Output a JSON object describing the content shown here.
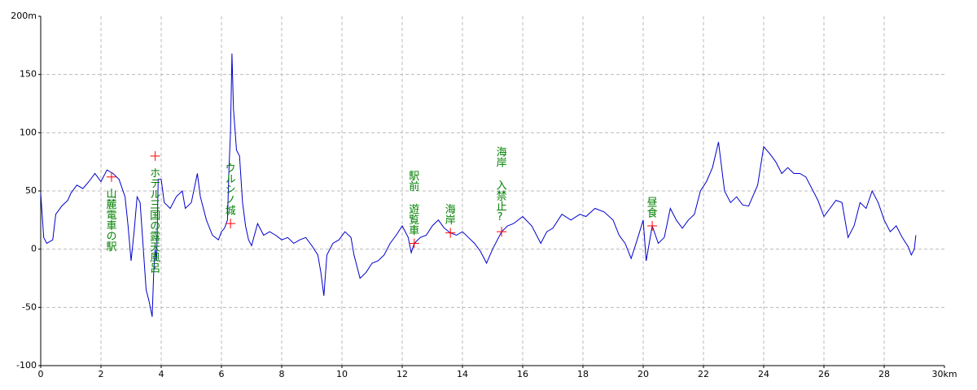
{
  "chart_data": {
    "type": "line",
    "x": [
      0,
      0.1,
      0.2,
      0.4,
      0.5,
      0.7,
      0.9,
      1.0,
      1.2,
      1.4,
      1.6,
      1.8,
      2.0,
      2.2,
      2.4,
      2.6,
      2.8,
      2.9,
      3.0,
      3.1,
      3.2,
      3.3,
      3.5,
      3.6,
      3.7,
      3.75,
      3.8,
      3.85,
      3.9,
      4.0,
      4.1,
      4.3,
      4.5,
      4.7,
      4.8,
      5.0,
      5.2,
      5.3,
      5.5,
      5.7,
      5.9,
      6.0,
      6.1,
      6.2,
      6.25,
      6.3,
      6.35,
      6.4,
      6.5,
      6.6,
      6.7,
      6.8,
      6.9,
      7.0,
      7.2,
      7.4,
      7.6,
      7.8,
      8.0,
      8.2,
      8.4,
      8.6,
      8.8,
      9.0,
      9.2,
      9.3,
      9.4,
      9.5,
      9.7,
      9.9,
      10.1,
      10.3,
      10.4,
      10.6,
      10.8,
      11.0,
      11.2,
      11.4,
      11.6,
      11.8,
      12.0,
      12.2,
      12.3,
      12.4,
      12.6,
      12.8,
      13.0,
      13.2,
      13.4,
      13.6,
      13.8,
      14.0,
      14.2,
      14.4,
      14.6,
      14.8,
      15.0,
      15.3,
      15.5,
      15.7,
      16.0,
      16.3,
      16.6,
      16.8,
      17.0,
      17.3,
      17.6,
      17.9,
      18.1,
      18.4,
      18.7,
      19.0,
      19.2,
      19.4,
      19.6,
      19.8,
      20.0,
      20.1,
      20.3,
      20.5,
      20.7,
      20.9,
      21.1,
      21.3,
      21.5,
      21.7,
      21.9,
      22.1,
      22.3,
      22.5,
      22.7,
      22.9,
      23.1,
      23.3,
      23.5,
      23.8,
      24.0,
      24.2,
      24.4,
      24.6,
      24.8,
      25.0,
      25.2,
      25.4,
      25.6,
      25.8,
      26.0,
      26.2,
      26.4,
      26.6,
      26.8,
      27.0,
      27.2,
      27.4,
      27.6,
      27.8,
      28.0,
      28.2,
      28.4,
      28.6,
      28.8,
      28.9,
      29.0,
      29.05
    ],
    "series": [
      {
        "color": "#0000cc",
        "values": [
          48,
          10,
          5,
          8,
          30,
          37,
          42,
          48,
          55,
          52,
          58,
          65,
          58,
          68,
          65,
          60,
          45,
          20,
          -10,
          15,
          45,
          40,
          -35,
          -45,
          -58,
          -20,
          0,
          -10,
          60,
          60,
          40,
          35,
          45,
          50,
          35,
          40,
          65,
          45,
          25,
          12,
          8,
          15,
          18,
          25,
          70,
          100,
          168,
          120,
          85,
          80,
          40,
          20,
          8,
          3,
          22,
          12,
          15,
          12,
          8,
          10,
          5,
          8,
          10,
          3,
          -5,
          -20,
          -40,
          -5,
          5,
          8,
          15,
          10,
          -5,
          -25,
          -20,
          -12,
          -10,
          -5,
          5,
          12,
          20,
          10,
          -3,
          5,
          10,
          12,
          20,
          25,
          18,
          14,
          12,
          15,
          10,
          5,
          -2,
          -12,
          0,
          15,
          20,
          22,
          28,
          20,
          5,
          15,
          18,
          30,
          25,
          30,
          28,
          35,
          32,
          25,
          12,
          5,
          -8,
          8,
          25,
          -10,
          20,
          5,
          10,
          35,
          25,
          18,
          25,
          30,
          50,
          58,
          70,
          92,
          50,
          40,
          45,
          38,
          37,
          55,
          88,
          82,
          75,
          65,
          70,
          65,
          65,
          62,
          52,
          42,
          28,
          35,
          42,
          40,
          10,
          20,
          40,
          35,
          50,
          40,
          25,
          15,
          20,
          10,
          2,
          -5,
          0,
          12
        ]
      }
    ],
    "annotations": [
      {
        "label": "山麓電車の駅",
        "x": 2.35,
        "y": 62
      },
      {
        "label": "ホテル三国の露天風呂",
        "x": 3.8,
        "y": 80
      },
      {
        "label": "ウルシノ城",
        "x": 6.3,
        "y": 22
      },
      {
        "label": "駅前 遊覧車",
        "x": 12.4,
        "y": 5
      },
      {
        "label": "海岸",
        "x": 13.6,
        "y": 14
      },
      {
        "label": "海岸 入禁止?",
        "x": 15.3,
        "y": 15
      },
      {
        "label": "昼食",
        "x": 20.3,
        "y": 20
      }
    ],
    "annotation_color": "#008000",
    "marker_color": "#ff0000",
    "xlim": [
      0,
      30
    ],
    "xticks": [
      0,
      2,
      4,
      6,
      8,
      10,
      12,
      14,
      16,
      18,
      20,
      22,
      24,
      26,
      28,
      {
        "value": 30,
        "label": "30km"
      }
    ],
    "ylim": [
      -100,
      200
    ],
    "yticks": [
      -100,
      -50,
      0,
      50,
      100,
      150,
      {
        "value": 200,
        "label": "200m"
      }
    ],
    "grid": true
  }
}
